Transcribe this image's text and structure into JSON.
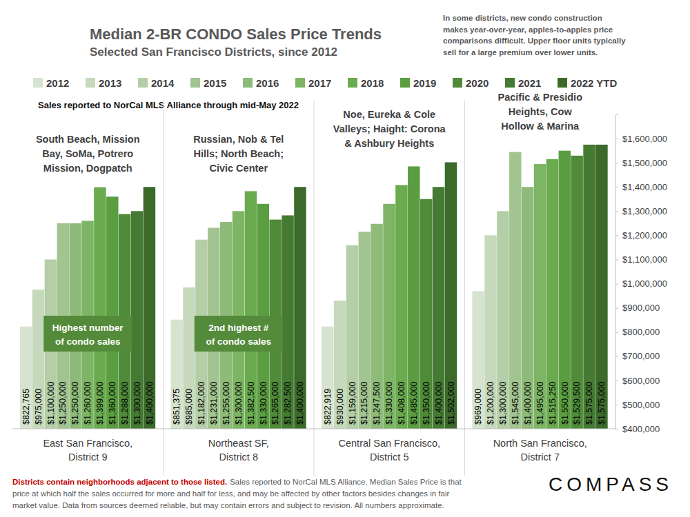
{
  "chart_data": {
    "type": "bar",
    "title": "Median 2-BR CONDO Sales Price Trends",
    "subtitle": "Selected San Francisco Districts, since 2012",
    "note": [
      "In some districts, new condo construction",
      "makes year-over-year, apples-to-apples price",
      "comparisons difficult. Upper floor units typically",
      "sell for a large premium over lower units."
    ],
    "source_note": "Sales reported to NorCal MLS Alliance through mid-May 2022",
    "categories": [
      "East San Francisco, District 9",
      "Northeast SF, District 8",
      "Central San Francisco, District 5",
      "North San Francisco, District 7"
    ],
    "group_labels": [
      [
        "South Beach, Mission",
        "Bay, SoMa, Potrero",
        "Mission, Dogpatch"
      ],
      [
        "Russian, Nob & Tel",
        "Hills; North Beach;",
        "Civic Center"
      ],
      [
        "Noe, Eureka & Cole",
        "Valleys; Haight: Corona",
        "& Ashbury Heights"
      ],
      [
        "Pacific & Presidio",
        "Heights, Cow",
        "Hollow & Marina"
      ]
    ],
    "callouts": [
      [
        "Highest number",
        "of condo sales"
      ],
      [
        "2nd highest #",
        "of condo sales"
      ]
    ],
    "series": [
      {
        "name": "2012",
        "color": "#d6e3cf",
        "values": [
          822765,
          851375,
          822919,
          969000
        ],
        "value_labels": [
          "$822,765",
          "$851,375",
          "$822,919",
          "$969,000"
        ]
      },
      {
        "name": "2013",
        "color": "#c6d9bc",
        "values": [
          975000,
          985000,
          930000,
          1200000
        ],
        "value_labels": [
          "$975,000",
          "$985,000",
          "$930,000",
          "$1,200,000"
        ]
      },
      {
        "name": "2014",
        "color": "#b4cea7",
        "values": [
          1100000,
          1182000,
          1159000,
          1300000
        ],
        "value_labels": [
          "$1,100,000",
          "$1,182,000",
          "$1,159,000",
          "$1,300,000"
        ]
      },
      {
        "name": "2015",
        "color": "#a2c491",
        "values": [
          1250000,
          1231000,
          1215000,
          1545000
        ],
        "value_labels": [
          "$1,250,000",
          "$1,231,000",
          "$1,215,000",
          "$1,545,000"
        ]
      },
      {
        "name": "2016",
        "color": "#8fbb7a",
        "values": [
          1250000,
          1255000,
          1247500,
          1400000
        ],
        "value_labels": [
          "$1,250,000",
          "$1,255,000",
          "$1,247,500",
          "$1,400,000"
        ]
      },
      {
        "name": "2017",
        "color": "#7db565",
        "values": [
          1260000,
          1300000,
          1330000,
          1495000
        ],
        "value_labels": [
          "$1,260,000",
          "$1,300,000",
          "$1,330,000",
          "$1,495,000"
        ]
      },
      {
        "name": "2018",
        "color": "#6aab4f",
        "values": [
          1399000,
          1382500,
          1408000,
          1515250
        ],
        "value_labels": [
          "$1,399,000",
          "$1,382,500",
          "$1,408,000",
          "$1,515,250"
        ]
      },
      {
        "name": "2019",
        "color": "#5b9e41",
        "values": [
          1360000,
          1330000,
          1485000,
          1550000
        ],
        "value_labels": [
          "$1,360,000",
          "$1,330,000",
          "$1,485,000",
          "$1,550,000"
        ]
      },
      {
        "name": "2020",
        "color": "#4f8b38",
        "values": [
          1288000,
          1265000,
          1350000,
          1529500
        ],
        "value_labels": [
          "$1,288,000",
          "$1,265,000",
          "$1,350,000",
          "$1,529,500"
        ]
      },
      {
        "name": "2021",
        "color": "#457a33",
        "values": [
          1300000,
          1282500,
          1400000,
          1575000
        ],
        "value_labels": [
          "$1,300,000",
          "$1,282,500",
          "$1,400,000",
          "$1,575,000"
        ]
      },
      {
        "name": "2022 YTD",
        "color": "#3b6a2b",
        "values": [
          1400000,
          1400000,
          1502000,
          1575000
        ],
        "value_labels": [
          "$1,400,000",
          "$1,400,000",
          "$1,502,000",
          "$1,575,000"
        ]
      }
    ],
    "ylim": [
      400000,
      1700000
    ],
    "yticks": [
      {
        "value": 400000,
        "label": "$400,000"
      },
      {
        "value": 500000,
        "label": "$500,000"
      },
      {
        "value": 600000,
        "label": "$600,000"
      },
      {
        "value": 700000,
        "label": "$700,000"
      },
      {
        "value": 800000,
        "label": "$800,000"
      },
      {
        "value": 900000,
        "label": "$900,000"
      },
      {
        "value": 1000000,
        "label": "$1,000,000"
      },
      {
        "value": 1100000,
        "label": "$1,100,000"
      },
      {
        "value": 1200000,
        "label": "$1,200,000"
      },
      {
        "value": 1300000,
        "label": "$1,300,000"
      },
      {
        "value": 1400000,
        "label": "$1,400,000"
      },
      {
        "value": 1500000,
        "label": "$1,500,000"
      },
      {
        "value": 1600000,
        "label": "$1,600,000"
      }
    ],
    "grid": false,
    "data_labels": true,
    "legend": "top",
    "footer": {
      "highlight": "Districts contain neighborhoods adjacent to those listed.",
      "lines": [
        "Sales reported to NorCal MLS Alliance. Median Sales Price is that",
        "price at which half the sales occurred for more and half for less, and may be affected by other factors besides changes in fair",
        "market value. Data from sources deemed reliable, but may contain errors and subject to revision. All numbers approximate."
      ]
    },
    "logo": "COMPASS"
  }
}
